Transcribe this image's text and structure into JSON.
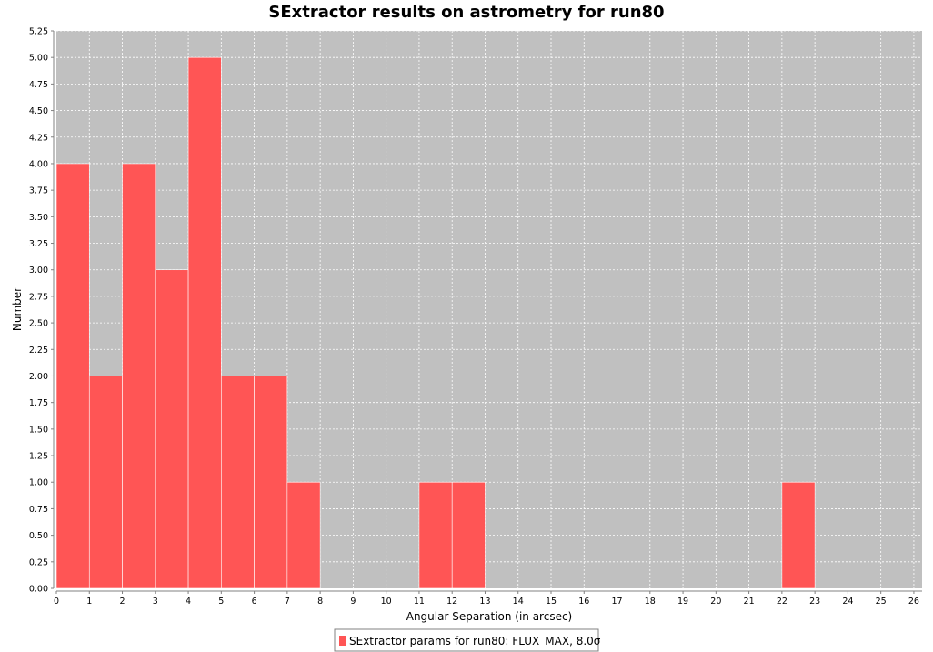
{
  "chart_data": {
    "type": "bar",
    "title": "SExtractor results on astrometry for run80",
    "xlabel": "Angular Separation (in arcsec)",
    "ylabel": "Number",
    "xlim": [
      0,
      26.25
    ],
    "ylim": [
      0,
      5.25
    ],
    "x_ticks": [
      0,
      1,
      2,
      3,
      4,
      5,
      6,
      7,
      8,
      9,
      10,
      11,
      12,
      13,
      14,
      15,
      16,
      17,
      18,
      19,
      20,
      21,
      22,
      23,
      24,
      25,
      26
    ],
    "y_ticks": [
      "0.00",
      "0.25",
      "0.50",
      "0.75",
      "1.00",
      "1.25",
      "1.50",
      "1.75",
      "2.00",
      "2.25",
      "2.50",
      "2.75",
      "3.00",
      "3.25",
      "3.50",
      "3.75",
      "4.00",
      "4.25",
      "4.50",
      "4.75",
      "5.00",
      "5.25"
    ],
    "grid": true,
    "legend_position": "bottom-center",
    "series": [
      {
        "name": "SExtractor params for run80: FLUX_MAX, 8.0σ",
        "color": "#ff5555",
        "bins": [
          {
            "x0": 0,
            "x1": 1,
            "value": 4
          },
          {
            "x0": 1,
            "x1": 2,
            "value": 2
          },
          {
            "x0": 2,
            "x1": 3,
            "value": 4
          },
          {
            "x0": 3,
            "x1": 4,
            "value": 3
          },
          {
            "x0": 4,
            "x1": 5,
            "value": 5
          },
          {
            "x0": 5,
            "x1": 6,
            "value": 2
          },
          {
            "x0": 6,
            "x1": 7,
            "value": 2
          },
          {
            "x0": 7,
            "x1": 8,
            "value": 1
          },
          {
            "x0": 11,
            "x1": 12,
            "value": 1
          },
          {
            "x0": 12,
            "x1": 13,
            "value": 1
          },
          {
            "x0": 22,
            "x1": 23,
            "value": 1
          }
        ]
      }
    ],
    "colors": {
      "plot_background": "#c0c0c0",
      "gridline": "#ffffff",
      "bar": "#ff5555"
    }
  }
}
